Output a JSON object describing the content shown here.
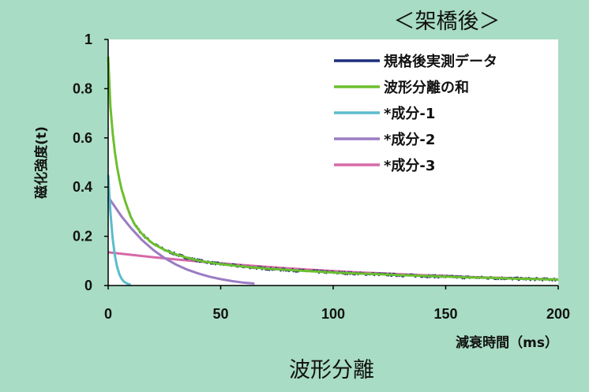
{
  "title": "＜架橋後＞",
  "caption": "波形分離",
  "chart_data": {
    "type": "line",
    "title": "＜架橋後＞",
    "xlabel": "減衰時間（ms）",
    "ylabel": "磁化強度(t)",
    "xlim": [
      0,
      200
    ],
    "ylim": [
      0,
      1
    ],
    "xticks": [
      0,
      50,
      100,
      150,
      200
    ],
    "yticks": [
      0,
      0.2,
      0.4,
      0.6,
      0.8,
      1
    ],
    "ytick_labels": [
      "0",
      "0.2",
      "0.4",
      "0.6",
      "0.8",
      "1"
    ],
    "grid": false,
    "legend": "top-right",
    "series": [
      {
        "name": "規格後実測データ",
        "color": "#1b2f7a",
        "noisy": true,
        "x": [
          0,
          1,
          2,
          3,
          4,
          5,
          6,
          8,
          10,
          12,
          15,
          18,
          20,
          25,
          30,
          35,
          40,
          45,
          50,
          60,
          70,
          80,
          90,
          100,
          110,
          120,
          130,
          140,
          150,
          160,
          170,
          180,
          190,
          200
        ],
        "y": [
          0.92,
          0.72,
          0.62,
          0.54,
          0.48,
          0.43,
          0.39,
          0.33,
          0.28,
          0.245,
          0.21,
          0.185,
          0.17,
          0.145,
          0.127,
          0.113,
          0.102,
          0.094,
          0.087,
          0.077,
          0.069,
          0.063,
          0.058,
          0.053,
          0.049,
          0.046,
          0.042,
          0.039,
          0.036,
          0.033,
          0.031,
          0.028,
          0.026,
          0.024
        ]
      },
      {
        "name": "波形分離の和",
        "color": "#6cc02e",
        "x": [
          0,
          1,
          2,
          3,
          4,
          5,
          6,
          8,
          10,
          12,
          15,
          18,
          20,
          25,
          30,
          35,
          40,
          45,
          50,
          60,
          70,
          80,
          90,
          100,
          110,
          120,
          130,
          140,
          150,
          160,
          170,
          180,
          190,
          200
        ],
        "y": [
          0.93,
          0.73,
          0.62,
          0.54,
          0.48,
          0.43,
          0.39,
          0.33,
          0.28,
          0.245,
          0.21,
          0.185,
          0.17,
          0.145,
          0.127,
          0.113,
          0.102,
          0.094,
          0.087,
          0.077,
          0.069,
          0.063,
          0.058,
          0.053,
          0.049,
          0.046,
          0.042,
          0.039,
          0.036,
          0.033,
          0.031,
          0.028,
          0.026,
          0.024
        ]
      },
      {
        "name": "*成分-1",
        "color": "#5bbccc",
        "x": [
          0,
          1,
          2,
          3,
          4,
          5,
          6,
          7,
          8,
          9,
          10
        ],
        "y": [
          0.45,
          0.3,
          0.19,
          0.12,
          0.075,
          0.045,
          0.027,
          0.016,
          0.01,
          0.006,
          0.003
        ]
      },
      {
        "name": "*成分-2",
        "color": "#9a7cc4",
        "x": [
          0,
          3,
          6,
          10,
          15,
          20,
          25,
          30,
          35,
          40,
          45,
          50,
          55,
          60,
          65
        ],
        "y": [
          0.36,
          0.32,
          0.28,
          0.235,
          0.185,
          0.145,
          0.112,
          0.086,
          0.065,
          0.049,
          0.036,
          0.026,
          0.018,
          0.012,
          0.008
        ]
      },
      {
        "name": "*成分-3",
        "color": "#d56aa8",
        "x": [
          0,
          10,
          20,
          30,
          40,
          50,
          60,
          70,
          80,
          90,
          100,
          110,
          120,
          130,
          140,
          150,
          160,
          170,
          180,
          190,
          200
        ],
        "y": [
          0.135,
          0.125,
          0.115,
          0.106,
          0.098,
          0.09,
          0.083,
          0.076,
          0.07,
          0.064,
          0.059,
          0.054,
          0.05,
          0.046,
          0.042,
          0.039,
          0.035,
          0.032,
          0.03,
          0.027,
          0.025
        ]
      }
    ]
  }
}
